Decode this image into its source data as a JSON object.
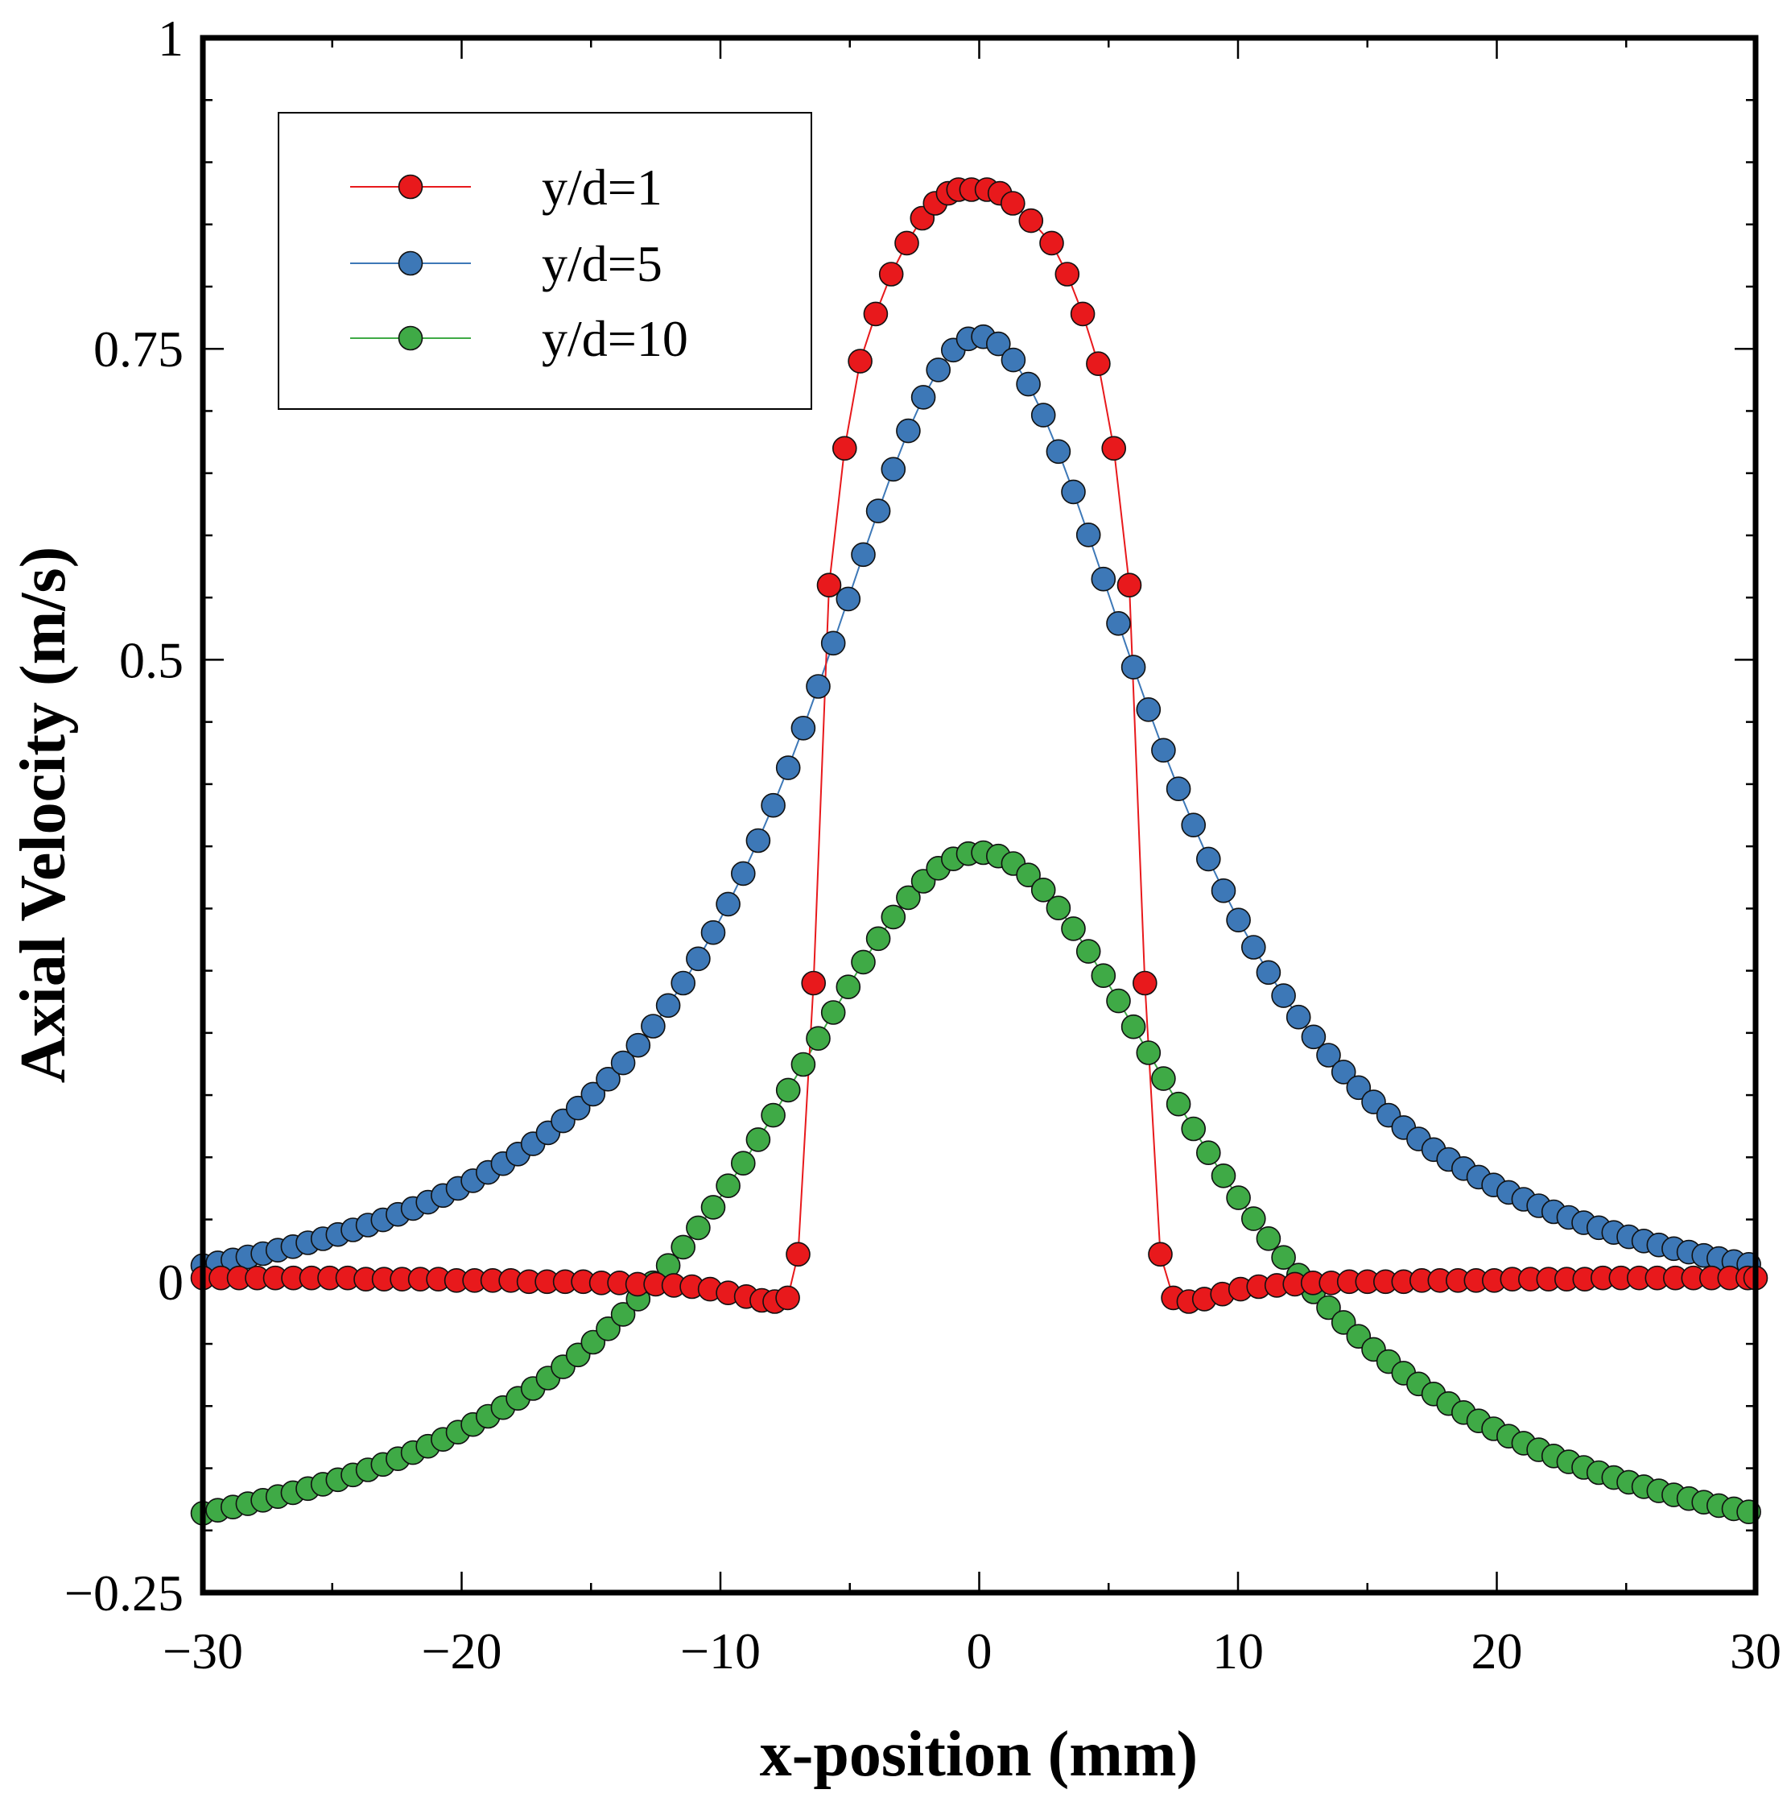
{
  "chart_data": {
    "type": "scatter",
    "title": "",
    "xlabel": "x-position (mm)",
    "ylabel": "Axial Velocity (m/s)",
    "xlim": [
      -30,
      30
    ],
    "ylim": [
      -0.25,
      1
    ],
    "xticks": [
      -30,
      -20,
      -10,
      0,
      10,
      20,
      30
    ],
    "xtick_labels": [
      "−30",
      "−20",
      "−10",
      "0",
      "10",
      "20",
      "30"
    ],
    "yticks": [
      -0.25,
      0,
      0.5,
      0.75,
      1
    ],
    "ytick_labels": [
      "−0.25",
      "0",
      "0.5",
      "0.75",
      "1"
    ],
    "x_minor_step": 5,
    "y_minor_step": 0.05,
    "grid": false,
    "legend_position": "top-left",
    "series": [
      {
        "name": "y/d=1",
        "color": "#e8191c",
        "line": true,
        "x": [
          -30.0,
          -29.3,
          -28.6,
          -27.9,
          -27.2,
          -26.5,
          -25.8,
          -25.1,
          -24.4,
          -23.7,
          -23.0,
          -22.3,
          -21.6,
          -20.9,
          -20.2,
          -19.5,
          -18.8,
          -18.1,
          -17.4,
          -16.7,
          -16.0,
          -15.3,
          -14.6,
          -13.9,
          -13.2,
          -12.5,
          -11.8,
          -11.1,
          -10.4,
          -9.7,
          -9.0,
          -8.4,
          -7.9,
          -7.4,
          -7.0,
          -6.4,
          -5.8,
          -5.2,
          -4.6,
          -4.0,
          -3.4,
          -2.8,
          -2.2,
          -1.7,
          -1.2,
          -0.8,
          -0.3,
          0.3,
          0.8,
          1.3,
          2.0,
          2.8,
          3.4,
          4.0,
          4.6,
          5.2,
          5.8,
          6.4,
          7.0,
          7.5,
          8.1,
          8.7,
          9.4,
          10.1,
          10.8,
          11.5,
          12.2,
          12.9,
          13.6,
          14.3,
          15.0,
          15.7,
          16.4,
          17.1,
          17.8,
          18.5,
          19.2,
          19.9,
          20.6,
          21.3,
          22.0,
          22.7,
          23.4,
          24.1,
          24.8,
          25.5,
          26.2,
          26.9,
          27.6,
          28.3,
          29.0,
          29.7,
          30.0
        ],
        "y": [
          0.003,
          0.003,
          0.003,
          0.003,
          0.003,
          0.003,
          0.003,
          0.003,
          0.003,
          0.002,
          0.002,
          0.002,
          0.002,
          0.002,
          0.001,
          0.001,
          0.001,
          0.001,
          0.0,
          0.0,
          0.0,
          0.0,
          -0.001,
          -0.001,
          -0.002,
          -0.002,
          -0.003,
          -0.004,
          -0.006,
          -0.009,
          -0.012,
          -0.015,
          -0.016,
          -0.013,
          0.022,
          0.24,
          0.56,
          0.67,
          0.74,
          0.778,
          0.81,
          0.835,
          0.855,
          0.867,
          0.875,
          0.878,
          0.878,
          0.878,
          0.875,
          0.867,
          0.853,
          0.835,
          0.81,
          0.778,
          0.738,
          0.67,
          0.56,
          0.24,
          0.022,
          -0.013,
          -0.016,
          -0.014,
          -0.01,
          -0.006,
          -0.004,
          -0.003,
          -0.002,
          -0.001,
          -0.001,
          0.0,
          0.0,
          0.0,
          0.0,
          0.001,
          0.001,
          0.001,
          0.001,
          0.001,
          0.002,
          0.002,
          0.002,
          0.002,
          0.002,
          0.003,
          0.003,
          0.003,
          0.003,
          0.003,
          0.003,
          0.003,
          0.003,
          0.003,
          0.003
        ]
      },
      {
        "name": "y/d=5",
        "color": "#3d78b7",
        "line": true,
        "profile": {
          "peak": 0.76,
          "center": 0.0,
          "halfwidth_mm": 8.5,
          "offset": -0.047,
          "step_mm": 0.58
        }
      },
      {
        "name": "y/d=10",
        "color": "#3faa46",
        "line": true,
        "profile": {
          "peak": 0.345,
          "center": 0.0,
          "halfwidth_mm": 10.8,
          "offset": -0.255,
          "step_mm": 0.58
        }
      }
    ]
  }
}
